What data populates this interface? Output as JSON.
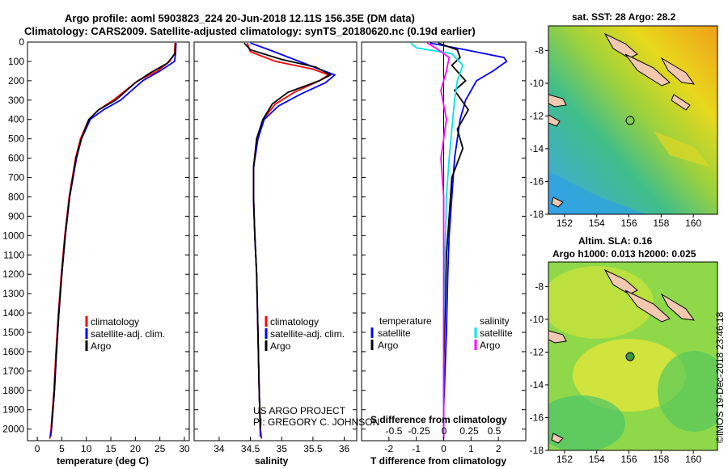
{
  "header": {
    "title1": "Argo profile: aoml 5903823_224 20-Jun-2018 12.11S 156.35E (DM data)",
    "title2": "Climatology: CARS2009. Satellite-adjusted climatology: synTS_20180620.nc (0.19d earlier)"
  },
  "colors": {
    "climatology": "#ff0000",
    "satellite": "#0000ff",
    "argo": "#000000",
    "salinity_satellite": "#00e5e5",
    "salinity_argo": "#ff00ff",
    "map_frame": "#000000"
  },
  "chart_data": [
    {
      "type": "line",
      "id": "temperature",
      "xlabel": "temperature (deg C)",
      "xlim": [
        -2,
        31
      ],
      "ylim": [
        2060,
        0
      ],
      "xticks": [
        0,
        5,
        10,
        15,
        20,
        25,
        30
      ],
      "yticks": [
        0,
        100,
        200,
        300,
        400,
        500,
        600,
        700,
        800,
        900,
        1000,
        1100,
        1200,
        1300,
        1400,
        1500,
        1600,
        1700,
        1800,
        1900,
        2000
      ],
      "legend": [
        "climatology",
        "satellite-adj. clim.",
        "Argo"
      ],
      "series": [
        {
          "name": "climatology",
          "color": "#ff0000",
          "x": [
            28.1,
            28.0,
            27.0,
            24.5,
            20.5,
            15.5,
            12.5,
            10.5,
            8.8,
            7.8,
            6.5,
            5.6,
            4.9,
            4.3,
            3.8,
            3.4,
            3.1,
            2.8,
            2.6,
            2.5
          ],
          "y": [
            5,
            60,
            100,
            150,
            200,
            300,
            350,
            400,
            500,
            600,
            800,
            1000,
            1200,
            1400,
            1600,
            1800,
            1900,
            2000,
            2040,
            2050
          ]
        },
        {
          "name": "satellite-adj. clim.",
          "color": "#0000ff",
          "x": [
            28.3,
            28.2,
            28.0,
            25.0,
            21.5,
            17.0,
            13.5,
            10.8,
            9.0,
            8.0,
            6.6,
            5.7,
            5.0,
            4.4,
            3.9,
            3.5,
            3.2,
            2.9,
            2.7
          ],
          "y": [
            5,
            60,
            100,
            150,
            200,
            300,
            350,
            400,
            500,
            600,
            800,
            1000,
            1200,
            1400,
            1600,
            1800,
            1900,
            2000,
            2040
          ]
        },
        {
          "name": "Argo",
          "color": "#000000",
          "x": [
            28.2,
            28.1,
            26.5,
            23.0,
            20.0,
            16.0,
            12.5,
            10.5,
            9.0,
            7.9,
            6.6,
            5.7,
            5.0,
            4.4,
            3.9,
            3.5,
            3.2,
            2.9
          ],
          "y": [
            5,
            60,
            110,
            160,
            210,
            300,
            350,
            400,
            500,
            600,
            800,
            1000,
            1200,
            1400,
            1600,
            1800,
            1900,
            1990
          ]
        }
      ]
    },
    {
      "type": "line",
      "id": "salinity",
      "xlabel": "salinity",
      "xlim": [
        33.6,
        36.2
      ],
      "ylim": [
        2060,
        0
      ],
      "xticks": [
        34,
        34.5,
        35,
        35.5,
        36
      ],
      "legend": [
        "climatology",
        "satellite-adj. clim.",
        "Argo"
      ],
      "series": [
        {
          "name": "climatology",
          "color": "#ff0000",
          "x": [
            34.45,
            34.5,
            34.9,
            35.5,
            35.75,
            35.6,
            35.2,
            34.9,
            34.7,
            34.6,
            34.55,
            34.55,
            34.57,
            34.6,
            34.62,
            34.64,
            34.66,
            34.68
          ],
          "y": [
            5,
            50,
            100,
            140,
            170,
            200,
            260,
            320,
            400,
            500,
            650,
            800,
            1000,
            1200,
            1500,
            1800,
            2000,
            2050
          ]
        },
        {
          "name": "satellite-adj. clim.",
          "color": "#0000ff",
          "x": [
            34.5,
            34.8,
            35.2,
            35.6,
            35.85,
            35.7,
            35.3,
            34.95,
            34.72,
            34.62,
            34.55,
            34.55,
            34.57,
            34.6,
            34.62,
            34.64,
            34.66
          ],
          "y": [
            5,
            40,
            90,
            140,
            170,
            210,
            270,
            330,
            400,
            500,
            650,
            800,
            1000,
            1200,
            1500,
            1800,
            2040
          ]
        },
        {
          "name": "Argo",
          "color": "#000000",
          "x": [
            34.4,
            34.5,
            35.0,
            35.55,
            35.78,
            35.6,
            35.1,
            34.85,
            34.7,
            34.6,
            34.55,
            34.55,
            34.57,
            34.6,
            34.62,
            34.64,
            34.66
          ],
          "y": [
            5,
            40,
            90,
            130,
            170,
            200,
            260,
            320,
            400,
            500,
            650,
            800,
            1000,
            1200,
            1500,
            1800,
            2000
          ]
        }
      ]
    },
    {
      "type": "line",
      "id": "difference",
      "xlabel": "T difference from climatology",
      "xlabel2": "S difference from climatology",
      "xlim": [
        -3,
        3
      ],
      "ylim": [
        2060,
        0
      ],
      "xticks": [
        -2,
        -1,
        0,
        1,
        2
      ],
      "xticks_s": [
        -0.5,
        -0.25,
        0,
        0.25,
        0.5
      ],
      "legend_left_title": "temperature",
      "legend_right_title": "salinity",
      "legend": [
        "satellite",
        "Argo",
        "satellite",
        "Argo"
      ],
      "series": [
        {
          "name": "temperature satellite",
          "color": "#0000ff",
          "x": [
            -0.5,
            0.8,
            1.5,
            2.2,
            2.3,
            1.8,
            1.2,
            0.8,
            0.6,
            0.4,
            0.3,
            0.2,
            0.15,
            0.1,
            0.05,
            0.0,
            0.0
          ],
          "y": [
            5,
            40,
            60,
            80,
            100,
            150,
            200,
            300,
            400,
            600,
            800,
            1000,
            1200,
            1500,
            1700,
            1900,
            2050
          ]
        },
        {
          "name": "temperature Argo",
          "color": "#000000",
          "x": [
            -0.2,
            0.5,
            0.6,
            0.3,
            0.8,
            0.4,
            0.9,
            0.5,
            0.7,
            0.3,
            0.2,
            0.1,
            0.05,
            0.0,
            0.0
          ],
          "y": [
            5,
            40,
            80,
            120,
            200,
            250,
            350,
            450,
            550,
            700,
            900,
            1100,
            1400,
            1700,
            2050
          ]
        },
        {
          "name": "salinity satellite",
          "color": "#00e5e5",
          "x": [
            -1.2,
            -1.0,
            0.3,
            0.7,
            0.5,
            0.4,
            0.3,
            0.2,
            0.1,
            0.05,
            0.0,
            0.0
          ],
          "y": [
            5,
            30,
            60,
            120,
            200,
            300,
            450,
            600,
            800,
            1100,
            1500,
            2050
          ]
        },
        {
          "name": "salinity Argo",
          "color": "#ff00ff",
          "x": [
            -0.6,
            -0.3,
            0.2,
            0.1,
            -0.1,
            0.1,
            -0.1,
            0.0,
            0.0
          ],
          "y": [
            5,
            30,
            80,
            150,
            250,
            400,
            600,
            800,
            2050
          ]
        }
      ]
    },
    {
      "type": "heatmap",
      "id": "sst-map",
      "title": "sat. SST: 28 Argo: 28.2",
      "xticks": [
        152,
        154,
        156,
        158,
        160
      ],
      "yticks": [
        -8,
        -10,
        -12,
        -14,
        -16,
        -18
      ],
      "xlim": [
        151,
        161.5
      ],
      "ylim": [
        -18,
        -6.5
      ],
      "argo_point": [
        156.35,
        -12.11
      ]
    },
    {
      "type": "heatmap",
      "id": "sla-map",
      "title": "Altim. SLA: 0.16",
      "subtitle": "Argo h1000: 0.013 h2000: 0.025",
      "xticks": [
        152,
        154,
        156,
        158,
        160
      ],
      "yticks": [
        -8,
        -10,
        -12,
        -14,
        -16,
        -18
      ],
      "xlim": [
        151,
        161.5
      ],
      "ylim": [
        -18,
        -6.5
      ],
      "argo_point": [
        156.35,
        -12.11
      ]
    }
  ],
  "credits": {
    "line1": "US ARGO PROJECT",
    "line2": "PI: GREGORY C. JOHNSON",
    "side": "©IMOS 19-Dec-2018 23:46:18"
  }
}
